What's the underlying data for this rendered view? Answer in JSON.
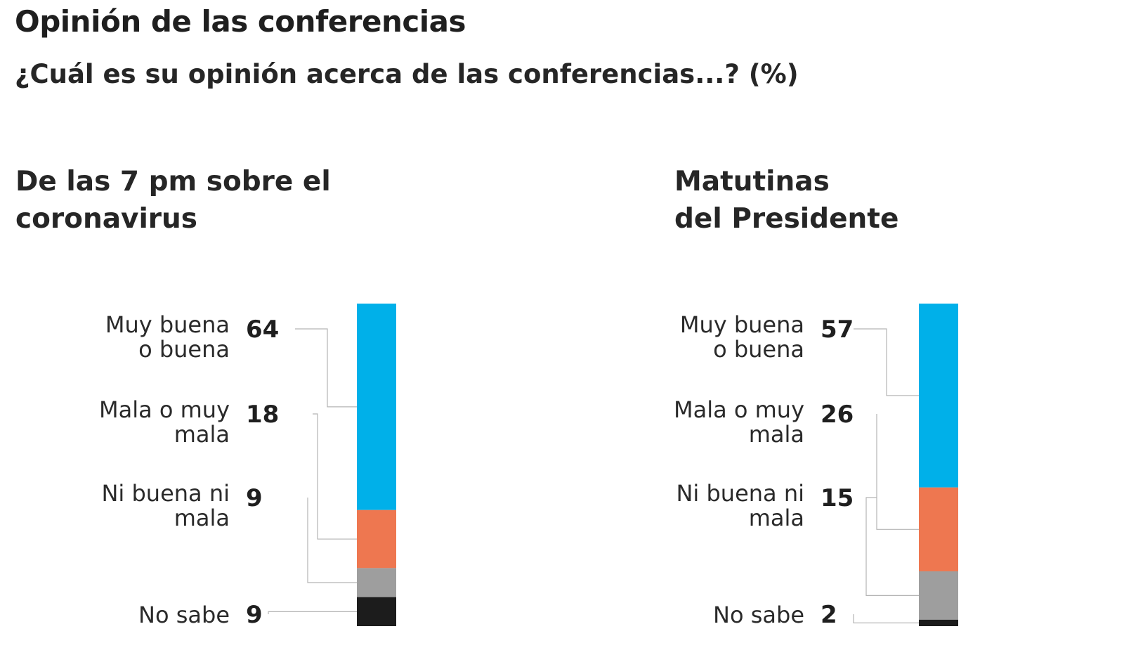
{
  "title": "Opinión de las conferencias",
  "subtitle": "¿Cuál es su opinión acerca de las conferencias...?  (%)",
  "chart_data": [
    {
      "type": "bar",
      "stacked": true,
      "orientation": "vertical",
      "title_lines": [
        "De las 7 pm sobre el",
        "coronavirus"
      ],
      "categories": [
        {
          "label_lines": [
            "Muy buena",
            "o buena"
          ],
          "value": 64,
          "color": "#00b0e9"
        },
        {
          "label_lines": [
            "Mala o muy",
            "mala"
          ],
          "value": 18,
          "color": "#ee7750"
        },
        {
          "label_lines": [
            "Ni buena ni",
            "mala"
          ],
          "value": 9,
          "color": "#9e9e9e"
        },
        {
          "label_lines": [
            "No sabe"
          ],
          "value": 9,
          "color": "#1c1c1c"
        }
      ],
      "total": 100
    },
    {
      "type": "bar",
      "stacked": true,
      "orientation": "vertical",
      "title_lines": [
        "Matutinas",
        "del Presidente"
      ],
      "categories": [
        {
          "label_lines": [
            "Muy buena",
            "o buena"
          ],
          "value": 57,
          "color": "#00b0e9"
        },
        {
          "label_lines": [
            "Mala o muy",
            "mala"
          ],
          "value": 26,
          "color": "#ee7750"
        },
        {
          "label_lines": [
            "Ni buena ni",
            "mala"
          ],
          "value": 15,
          "color": "#9e9e9e"
        },
        {
          "label_lines": [
            "No sabe"
          ],
          "value": 2,
          "color": "#1c1c1c"
        }
      ],
      "total": 100
    }
  ]
}
